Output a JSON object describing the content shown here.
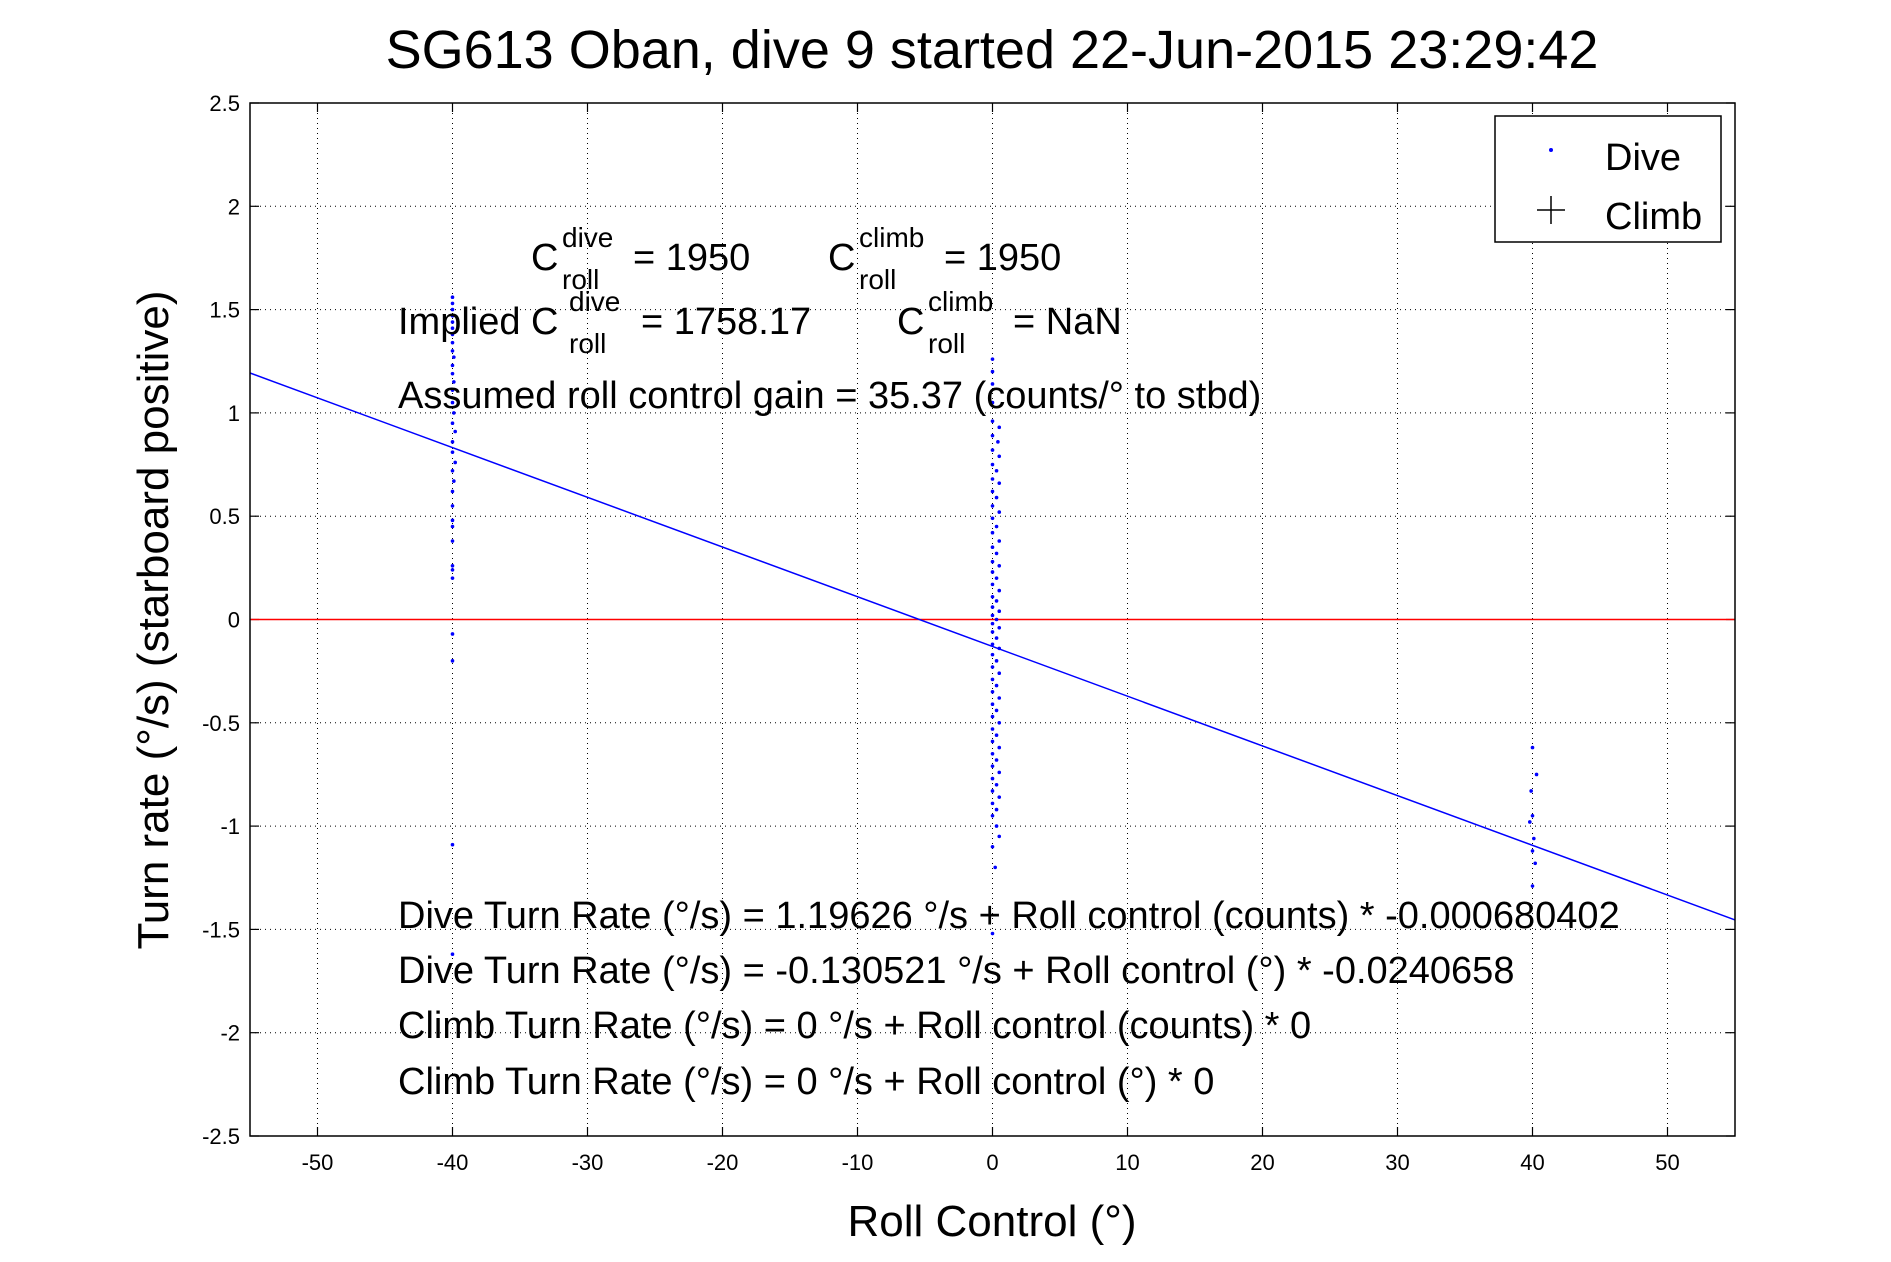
{
  "chart_data": {
    "type": "scatter",
    "title": "SG613 Oban, dive 9 started 22-Jun-2015 23:29:42",
    "xlabel": "Roll Control (°)",
    "ylabel": "Turn rate (°/s)  (starboard positive)",
    "xlim": [
      -55,
      55
    ],
    "ylim": [
      -2.5,
      2.5
    ],
    "xticks": [
      -50,
      -40,
      -30,
      -20,
      -10,
      0,
      10,
      20,
      30,
      40,
      50
    ],
    "yticks": [
      -2.5,
      -2,
      -1.5,
      -1,
      -0.5,
      0,
      0.5,
      1,
      1.5,
      2,
      2.5
    ],
    "xtick_labels": [
      "-50",
      "-40",
      "-30",
      "-20",
      "-10",
      "0",
      "10",
      "20",
      "30",
      "40",
      "50"
    ],
    "ytick_labels": [
      "-2.5",
      "-2",
      "-1.5",
      "-1",
      "-0.5",
      "0",
      "0.5",
      "1",
      "1.5",
      "2",
      "2.5"
    ],
    "grid": true,
    "legend_position": "top-right",
    "series": [
      {
        "name": "Dive",
        "marker": "dot",
        "color": "#0000ff",
        "points": [
          [
            -40,
            1.56
          ],
          [
            -40,
            1.53
          ],
          [
            -40,
            1.5
          ],
          [
            -40,
            1.47
          ],
          [
            -40,
            1.44
          ],
          [
            -40,
            1.41
          ],
          [
            -40,
            1.38
          ],
          [
            -40,
            1.34
          ],
          [
            -40,
            1.3
          ],
          [
            -39.9,
            1.27
          ],
          [
            -40,
            1.23
          ],
          [
            -40,
            1.19
          ],
          [
            -39.9,
            1.15
          ],
          [
            -40,
            1.11
          ],
          [
            -40,
            1.05
          ],
          [
            -39.9,
            1.0
          ],
          [
            -40,
            0.95
          ],
          [
            -39.8,
            0.91
          ],
          [
            -40,
            0.86
          ],
          [
            -40,
            0.81
          ],
          [
            -39.8,
            0.76
          ],
          [
            -40,
            0.72
          ],
          [
            -39.9,
            0.67
          ],
          [
            -40,
            0.62
          ],
          [
            -40,
            0.55
          ],
          [
            -40,
            0.48
          ],
          [
            -40,
            0.45
          ],
          [
            -40,
            0.38
          ],
          [
            -40,
            0.26
          ],
          [
            -40,
            0.24
          ],
          [
            -40,
            0.2
          ],
          [
            -40,
            -0.07
          ],
          [
            -40,
            -0.2
          ],
          [
            -40,
            -1.09
          ],
          [
            -40,
            -1.62
          ],
          [
            0,
            1.26
          ],
          [
            0,
            1.2
          ],
          [
            0,
            1.14
          ],
          [
            0,
            1.05
          ],
          [
            0,
            0.96
          ],
          [
            0.5,
            0.93
          ],
          [
            0,
            0.89
          ],
          [
            0.4,
            0.86
          ],
          [
            0,
            0.82
          ],
          [
            0.5,
            0.79
          ],
          [
            0,
            0.75
          ],
          [
            0.3,
            0.72
          ],
          [
            0,
            0.68
          ],
          [
            0.5,
            0.66
          ],
          [
            0,
            0.62
          ],
          [
            0.3,
            0.59
          ],
          [
            0,
            0.55
          ],
          [
            0.5,
            0.52
          ],
          [
            0,
            0.49
          ],
          [
            0.3,
            0.45
          ],
          [
            0,
            0.42
          ],
          [
            0.5,
            0.38
          ],
          [
            0,
            0.35
          ],
          [
            0.3,
            0.32
          ],
          [
            0,
            0.28
          ],
          [
            0.5,
            0.26
          ],
          [
            0,
            0.23
          ],
          [
            0.3,
            0.2
          ],
          [
            0,
            0.17
          ],
          [
            0.5,
            0.14
          ],
          [
            0,
            0.11
          ],
          [
            0.3,
            0.09
          ],
          [
            0,
            0.06
          ],
          [
            0.5,
            0.04
          ],
          [
            0,
            0.02
          ],
          [
            0.3,
            0.0
          ],
          [
            0,
            -0.02
          ],
          [
            0.5,
            -0.04
          ],
          [
            0,
            -0.06
          ],
          [
            0.3,
            -0.09
          ],
          [
            0,
            -0.12
          ],
          [
            0.5,
            -0.14
          ],
          [
            0,
            -0.17
          ],
          [
            0.3,
            -0.2
          ],
          [
            0,
            -0.23
          ],
          [
            0.5,
            -0.26
          ],
          [
            0,
            -0.29
          ],
          [
            0.3,
            -0.32
          ],
          [
            0,
            -0.35
          ],
          [
            0.5,
            -0.38
          ],
          [
            0,
            -0.41
          ],
          [
            0.3,
            -0.44
          ],
          [
            0,
            -0.47
          ],
          [
            0.5,
            -0.5
          ],
          [
            0,
            -0.53
          ],
          [
            0.3,
            -0.56
          ],
          [
            0,
            -0.59
          ],
          [
            0.5,
            -0.62
          ],
          [
            0,
            -0.65
          ],
          [
            0.3,
            -0.68
          ],
          [
            0,
            -0.71
          ],
          [
            0.5,
            -0.74
          ],
          [
            0,
            -0.77
          ],
          [
            0.3,
            -0.8
          ],
          [
            0,
            -0.83
          ],
          [
            0.5,
            -0.86
          ],
          [
            0,
            -0.89
          ],
          [
            0.3,
            -0.92
          ],
          [
            0,
            -0.95
          ],
          [
            0.3,
            -1.0
          ],
          [
            0.5,
            -1.05
          ],
          [
            0,
            -1.1
          ],
          [
            0.2,
            -1.2
          ],
          [
            0,
            -1.52
          ],
          [
            40,
            -0.62
          ],
          [
            40.3,
            -0.75
          ],
          [
            39.9,
            -0.83
          ],
          [
            40,
            -0.95
          ],
          [
            39.8,
            -0.98
          ],
          [
            40.1,
            -1.06
          ],
          [
            40,
            -1.12
          ],
          [
            40.2,
            -1.18
          ],
          [
            40,
            -1.29
          ]
        ]
      },
      {
        "name": "Climb",
        "marker": "plus",
        "color": "#000000",
        "points": []
      }
    ],
    "fit_line": {
      "color": "#0000ff",
      "intercept": -0.130521,
      "slope": -0.0240658
    },
    "zero_line": {
      "y": 0,
      "color": "#ff0000"
    }
  },
  "legend": {
    "dive_label": "Dive",
    "climb_label": "Climb"
  },
  "annotations": {
    "c_roll_dive_prefix": "C",
    "c_roll_dive_sup": "dive",
    "c_roll_dive_sub": "roll",
    "c_roll_dive_value": "= 1950",
    "c_roll_climb_prefix": "C",
    "c_roll_climb_sup": "climb",
    "c_roll_climb_sub": "roll",
    "c_roll_climb_value": "= 1950",
    "implied_prefix": "Implied C",
    "implied_dive_sup": "dive",
    "implied_dive_sub": "roll",
    "implied_dive_value": "= 1758.17",
    "implied_climb_prefix": "C",
    "implied_climb_sup": "climb",
    "implied_climb_sub": "roll",
    "implied_climb_value": "= NaN",
    "gain": "Assumed roll control gain = 35.37 (counts/° to stbd)",
    "dive_counts": "Dive Turn Rate (°/s) = 1.19626 °/s + Roll control (counts) * -0.000680402",
    "dive_degrees": "Dive Turn Rate (°/s) = -0.130521 °/s + Roll control (°) * -0.0240658",
    "climb_counts": "Climb Turn Rate (°/s) = 0 °/s + Roll control (counts) * 0",
    "climb_degrees": "Climb Turn Rate (°/s) = 0 °/s + Roll control (°) * 0"
  }
}
